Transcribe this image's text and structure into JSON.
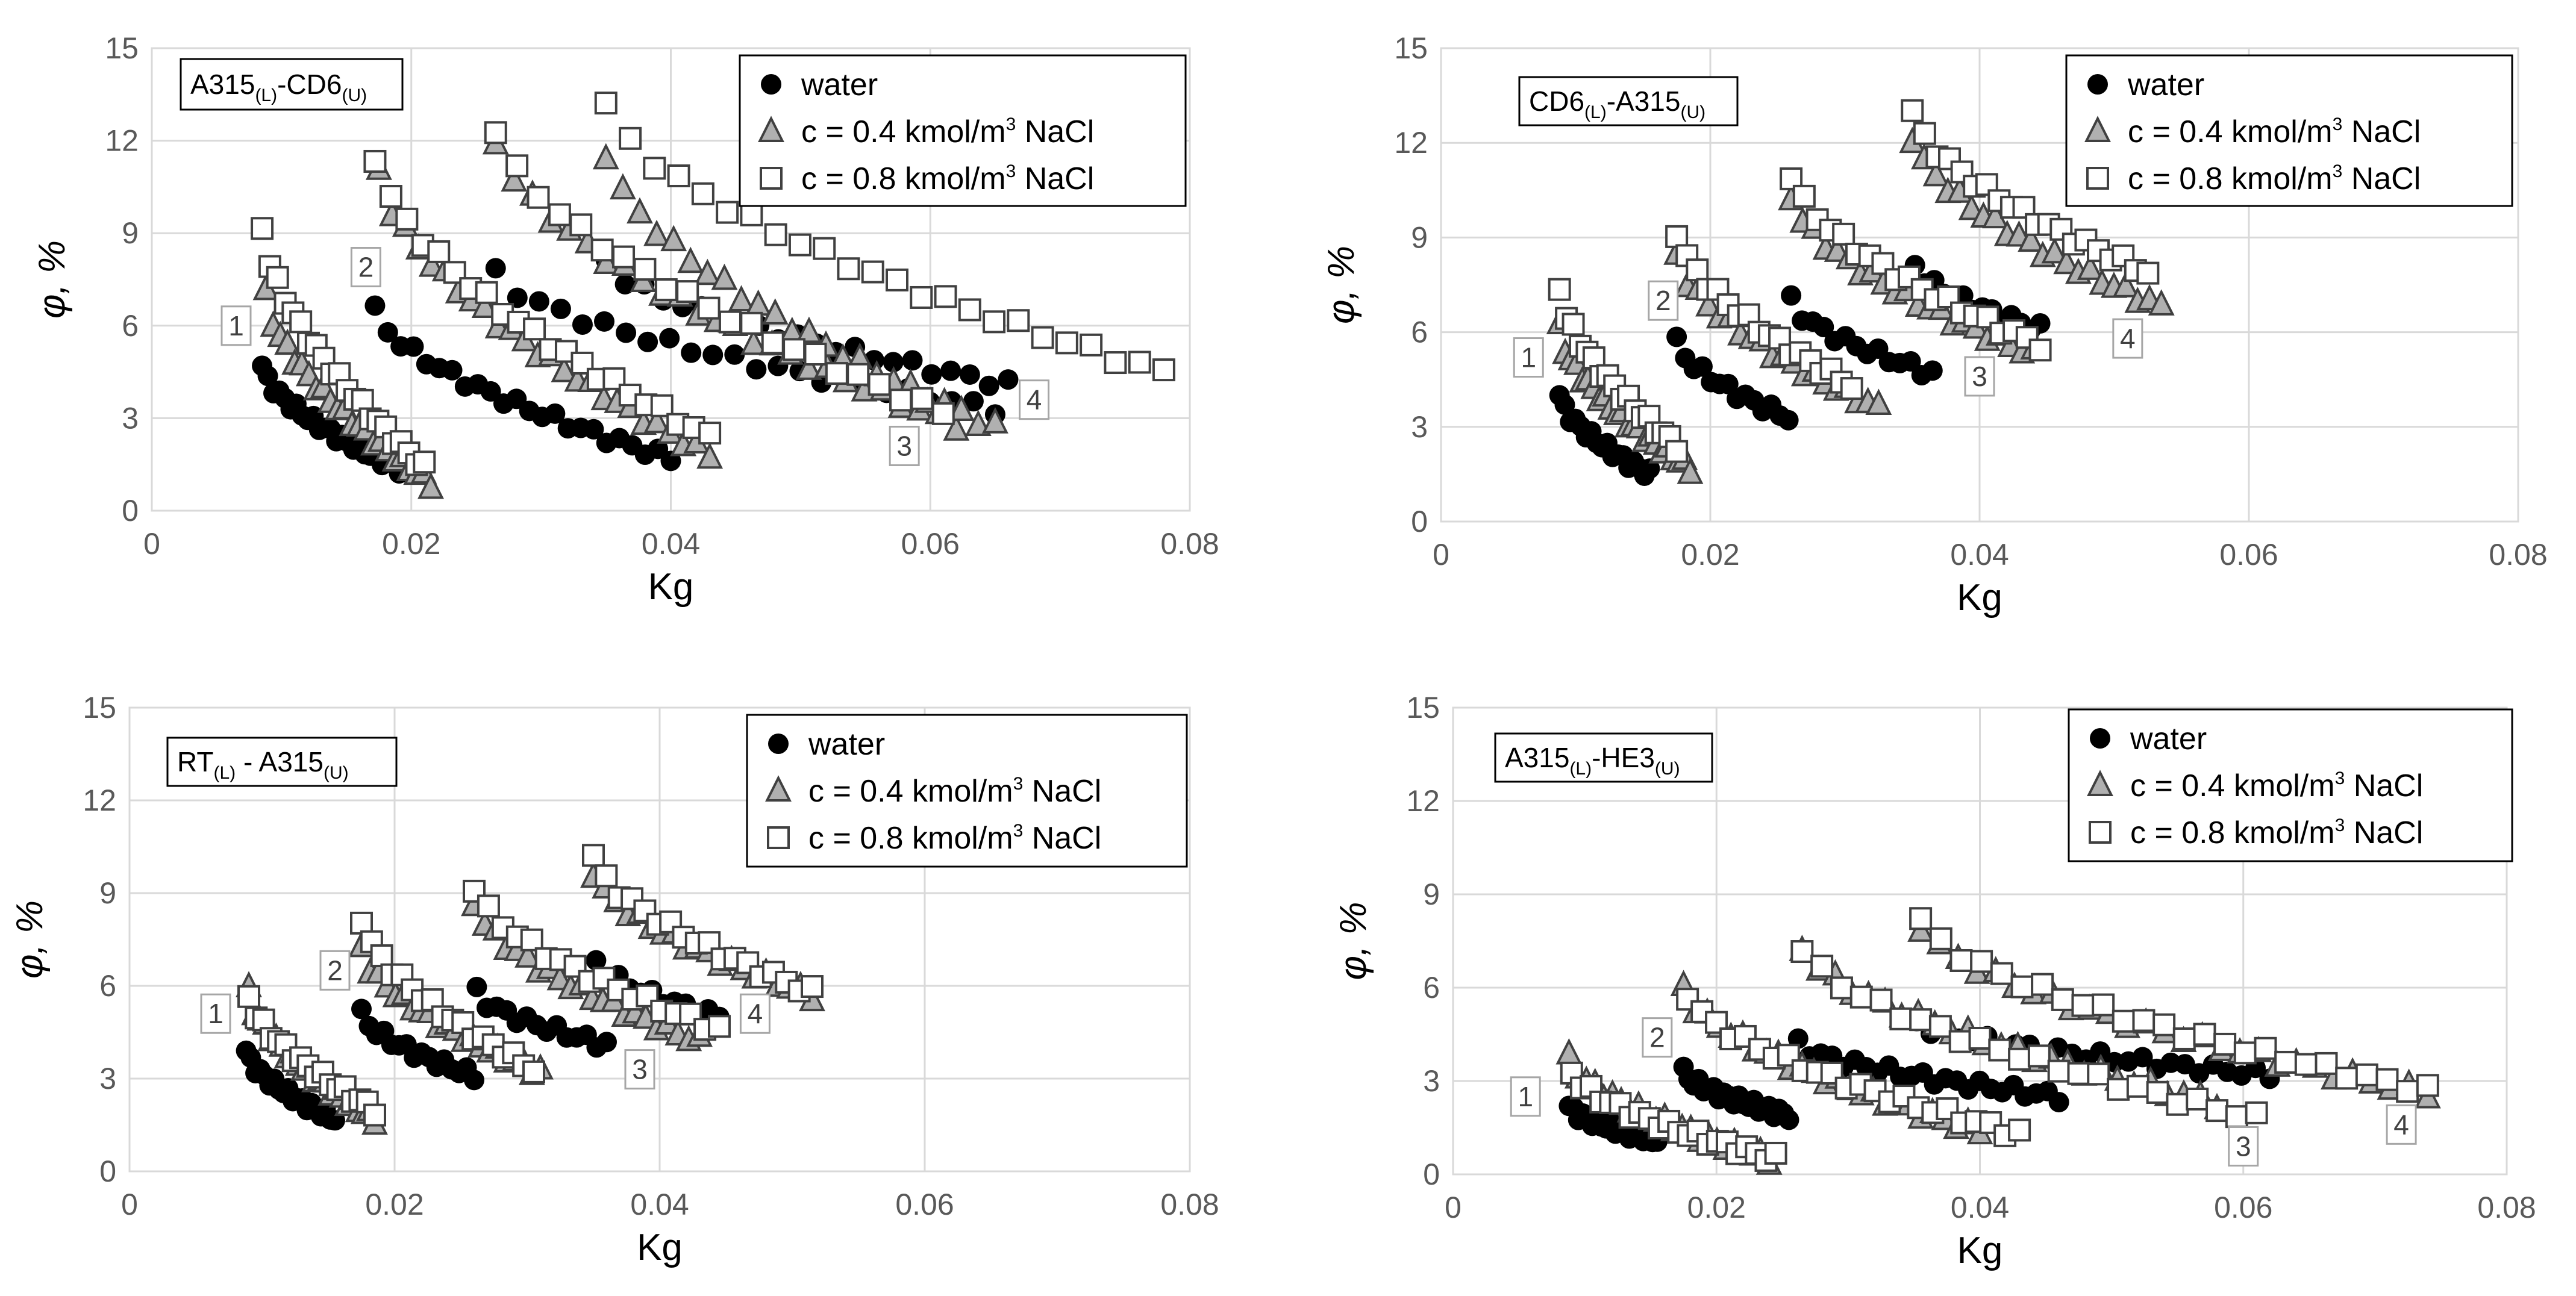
{
  "colors": {
    "water": "#000000",
    "salt04_fill": "#b0b0b0",
    "marker_stroke": "#404040",
    "grid": "#d9d9d9",
    "tick_text": "#595959"
  },
  "legend": {
    "water": "water",
    "salt04": {
      "pre": "c = 0.4 kmol/m",
      "sup": "3",
      "post": " NaCl"
    },
    "salt08": {
      "pre": "c = 0.8 kmol/m",
      "sup": "3",
      "post": " NaCl"
    }
  },
  "chart_data": [
    {
      "type": "scatter",
      "title": {
        "a": "A315",
        "asub": "(L)",
        "mid": "-CD6",
        "bsub": "(U)"
      },
      "xlabel": "Kg",
      "ylabel": "φ, %",
      "xlim": [
        0,
        0.08
      ],
      "ylim": [
        0,
        15
      ],
      "xticks": [
        "0",
        "0.02",
        "0.04",
        "0.06",
        "0.08"
      ],
      "yticks": [
        "0",
        "3",
        "6",
        "9",
        "12",
        "15"
      ],
      "series": [
        {
          "name": "water",
          "groups": [
            {
              "x0": 0.0085,
              "x1": 0.0195,
              "y0": 4.7,
              "y1": 1.3,
              "n": 26
            },
            {
              "x0": 0.0172,
              "x1": 0.04,
              "y0": 6.5,
              "y1": 1.7,
              "n": 24
            },
            {
              "x0": 0.0265,
              "x1": 0.065,
              "y0": 7.7,
              "y1": 3.3,
              "n": 24
            },
            {
              "x0": 0.035,
              "x1": 0.066,
              "y0": 8.1,
              "y1": 4.1,
              "n": 22
            }
          ]
        },
        {
          "name": "c = 0.4 kmol/m3 NaCl",
          "groups": [
            {
              "x0": 0.0088,
              "x1": 0.0215,
              "y0": 7.0,
              "y1": 0.9,
              "n": 24
            },
            {
              "x0": 0.0175,
              "x1": 0.043,
              "y0": 11.0,
              "y1": 1.8,
              "n": 26
            },
            {
              "x0": 0.0265,
              "x1": 0.062,
              "y0": 12.0,
              "y1": 2.8,
              "n": 26
            },
            {
              "x0": 0.035,
              "x1": 0.065,
              "y0": 11.6,
              "y1": 2.7,
              "n": 24
            }
          ]
        },
        {
          "name": "c = 0.8 kmol/m3 NaCl",
          "groups": [
            {
              "x0": 0.0085,
              "x1": 0.021,
              "y0": 9.2,
              "y1": 1.4,
              "n": 22
            },
            {
              "x0": 0.0172,
              "x1": 0.043,
              "y0": 11.5,
              "y1": 2.4,
              "n": 22
            },
            {
              "x0": 0.0265,
              "x1": 0.061,
              "y0": 12.4,
              "y1": 3.2,
              "n": 22
            },
            {
              "x0": 0.035,
              "x1": 0.078,
              "y0": 13.2,
              "y1": 4.5,
              "n": 24
            }
          ]
        }
      ],
      "annotations": [
        {
          "text": "1",
          "x": 0.0065,
          "y": 6.0
        },
        {
          "text": "2",
          "x": 0.0165,
          "y": 7.9
        },
        {
          "text": "3",
          "x": 0.058,
          "y": 2.1
        },
        {
          "text": "4",
          "x": 0.068,
          "y": 3.6
        }
      ]
    },
    {
      "type": "scatter",
      "title": {
        "a": "CD6",
        "asub": "(L)",
        "mid": "-A315",
        "bsub": "(U)"
      },
      "xlabel": "Kg",
      "ylabel": "φ, %",
      "xlim": [
        0,
        0.08
      ],
      "ylim": [
        0,
        15
      ],
      "xticks": [
        "0",
        "0.02",
        "0.04",
        "0.06",
        "0.08"
      ],
      "yticks": [
        "0",
        "3",
        "6",
        "9",
        "12",
        "15"
      ],
      "series": [
        {
          "name": "water",
          "groups": [
            {
              "x0": 0.0088,
              "x1": 0.0155,
              "y0": 4.0,
              "y1": 1.5,
              "n": 18
            },
            {
              "x0": 0.0175,
              "x1": 0.0258,
              "y0": 5.7,
              "y1": 3.3,
              "n": 14
            },
            {
              "x0": 0.026,
              "x1": 0.0365,
              "y0": 7.0,
              "y1": 4.7,
              "n": 14
            },
            {
              "x0": 0.0352,
              "x1": 0.0445,
              "y0": 8.1,
              "y1": 6.1,
              "n": 14
            }
          ]
        },
        {
          "name": "c = 0.4 kmol/m3 NaCl",
          "groups": [
            {
              "x0": 0.0088,
              "x1": 0.0185,
              "y0": 6.1,
              "y1": 1.7,
              "n": 24
            },
            {
              "x0": 0.0175,
              "x1": 0.0325,
              "y0": 8.4,
              "y1": 3.6,
              "n": 20
            },
            {
              "x0": 0.026,
              "x1": 0.044,
              "y0": 10.3,
              "y1": 5.3,
              "n": 22
            },
            {
              "x0": 0.035,
              "x1": 0.0535,
              "y0": 12.2,
              "y1": 6.8,
              "n": 22
            }
          ]
        },
        {
          "name": "c = 0.8 kmol/m3 NaCl",
          "groups": [
            {
              "x0": 0.0088,
              "x1": 0.0175,
              "y0": 7.4,
              "y1": 2.4,
              "n": 18
            },
            {
              "x0": 0.0175,
              "x1": 0.0305,
              "y0": 9.2,
              "y1": 4.3,
              "n": 18
            },
            {
              "x0": 0.026,
              "x1": 0.0445,
              "y0": 11.0,
              "y1": 5.6,
              "n": 20
            },
            {
              "x0": 0.035,
              "x1": 0.0525,
              "y0": 13.0,
              "y1": 7.9,
              "n": 20
            }
          ]
        }
      ],
      "annotations": [
        {
          "text": "1",
          "x": 0.0065,
          "y": 5.2
        },
        {
          "text": "2",
          "x": 0.0165,
          "y": 7.0
        },
        {
          "text": "3",
          "x": 0.04,
          "y": 4.6
        },
        {
          "text": "4",
          "x": 0.051,
          "y": 5.8
        }
      ]
    },
    {
      "type": "scatter",
      "title": {
        "a": "RT",
        "asub": "(L)",
        "mid": " - A315",
        "bsub": "(U)"
      },
      "xlabel": "Kg",
      "ylabel": "φ, %",
      "xlim": [
        0,
        0.08
      ],
      "ylim": [
        0,
        15
      ],
      "xticks": [
        "0",
        "0.02",
        "0.04",
        "0.06",
        "0.08"
      ],
      "yticks": [
        "0",
        "3",
        "6",
        "9",
        "12",
        "15"
      ],
      "series": [
        {
          "name": "water",
          "groups": [
            {
              "x0": 0.0088,
              "x1": 0.0155,
              "y0": 3.9,
              "y1": 1.7,
              "n": 20
            },
            {
              "x0": 0.0175,
              "x1": 0.026,
              "y0": 5.1,
              "y1": 3.1,
              "n": 16
            },
            {
              "x0": 0.0262,
              "x1": 0.036,
              "y0": 5.8,
              "y1": 4.1,
              "n": 14
            },
            {
              "x0": 0.0352,
              "x1": 0.0445,
              "y0": 6.8,
              "y1": 5.0,
              "n": 12
            }
          ]
        },
        {
          "name": "c = 0.4 kmol/m3 NaCl",
          "groups": [
            {
              "x0": 0.009,
              "x1": 0.0185,
              "y0": 5.8,
              "y1": 1.7,
              "n": 24
            },
            {
              "x0": 0.0175,
              "x1": 0.031,
              "y0": 7.2,
              "y1": 3.2,
              "n": 22
            },
            {
              "x0": 0.026,
              "x1": 0.043,
              "y0": 8.7,
              "y1": 4.2,
              "n": 22
            },
            {
              "x0": 0.035,
              "x1": 0.0515,
              "y0": 9.7,
              "y1": 5.7,
              "n": 20
            }
          ]
        },
        {
          "name": "c = 0.8 kmol/m3 NaCl",
          "groups": [
            {
              "x0": 0.009,
              "x1": 0.0185,
              "y0": 5.7,
              "y1": 2.0,
              "n": 18
            },
            {
              "x0": 0.0175,
              "x1": 0.0305,
              "y0": 8.2,
              "y1": 3.3,
              "n": 18
            },
            {
              "x0": 0.026,
              "x1": 0.0445,
              "y0": 9.2,
              "y1": 4.6,
              "n": 18
            },
            {
              "x0": 0.035,
              "x1": 0.0515,
              "y0": 10.2,
              "y1": 5.8,
              "n": 18
            }
          ]
        }
      ],
      "annotations": [
        {
          "text": "1",
          "x": 0.0065,
          "y": 5.1
        },
        {
          "text": "2",
          "x": 0.0155,
          "y": 6.5
        },
        {
          "text": "3",
          "x": 0.0385,
          "y": 3.3
        },
        {
          "text": "4",
          "x": 0.0472,
          "y": 5.1
        }
      ]
    },
    {
      "type": "scatter",
      "title": {
        "a": "A315",
        "asub": "(L)",
        "mid": "-HE3",
        "bsub": "(U)"
      },
      "xlabel": "Kg",
      "ylabel": "φ, %",
      "xlim": [
        0,
        0.08
      ],
      "ylim": [
        0,
        15
      ],
      "xticks": [
        "0",
        "0.02",
        "0.04",
        "0.06",
        "0.08"
      ],
      "yticks": [
        "0",
        "3",
        "6",
        "9",
        "12",
        "15"
      ],
      "series": [
        {
          "name": "water",
          "groups": [
            {
              "x0": 0.0088,
              "x1": 0.0155,
              "y0": 2.2,
              "y1": 1.1,
              "n": 20
            },
            {
              "x0": 0.0175,
              "x1": 0.0255,
              "y0": 3.3,
              "y1": 1.9,
              "n": 22
            },
            {
              "x0": 0.0262,
              "x1": 0.046,
              "y0": 4.2,
              "y1": 2.5,
              "n": 24
            },
            {
              "x0": 0.0352,
              "x1": 0.062,
              "y0": 4.9,
              "y1": 3.2,
              "n": 26
            }
          ]
        },
        {
          "name": "c = 0.4 kmol/m3 NaCl",
          "groups": [
            {
              "x0": 0.0088,
              "x1": 0.024,
              "y0": 3.7,
              "y1": 0.5,
              "n": 24
            },
            {
              "x0": 0.0175,
              "x1": 0.04,
              "y0": 6.0,
              "y1": 1.4,
              "n": 26
            },
            {
              "x0": 0.0265,
              "x1": 0.058,
              "y0": 7.3,
              "y1": 2.3,
              "n": 26
            },
            {
              "x0": 0.0355,
              "x1": 0.074,
              "y0": 8.0,
              "y1": 2.6,
              "n": 28
            }
          ]
        },
        {
          "name": "c = 0.8 kmol/m3 NaCl",
          "groups": [
            {
              "x0": 0.009,
              "x1": 0.0245,
              "y0": 3.3,
              "y1": 0.5,
              "n": 22
            },
            {
              "x0": 0.0178,
              "x1": 0.043,
              "y0": 5.8,
              "y1": 1.3,
              "n": 24
            },
            {
              "x0": 0.0265,
              "x1": 0.061,
              "y0": 7.3,
              "y1": 1.8,
              "n": 24
            },
            {
              "x0": 0.0355,
              "x1": 0.074,
              "y0": 8.2,
              "y1": 2.7,
              "n": 26
            }
          ]
        }
      ],
      "annotations": [
        {
          "text": "1",
          "x": 0.0055,
          "y": 2.5
        },
        {
          "text": "2",
          "x": 0.0155,
          "y": 4.4
        },
        {
          "text": "3",
          "x": 0.06,
          "y": 0.9
        },
        {
          "text": "4",
          "x": 0.072,
          "y": 1.6
        }
      ]
    }
  ]
}
